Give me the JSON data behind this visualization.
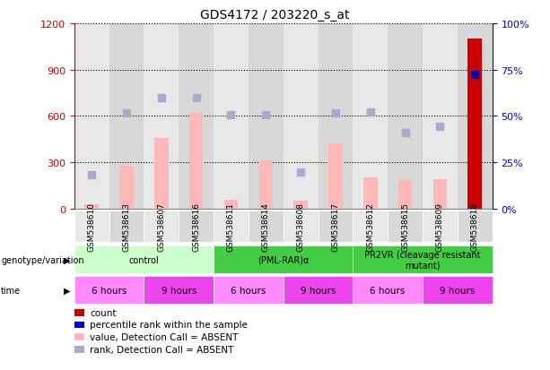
{
  "title": "GDS4172 / 203220_s_at",
  "samples": [
    "GSM538610",
    "GSM538613",
    "GSM538607",
    "GSM538616",
    "GSM538611",
    "GSM538614",
    "GSM538608",
    "GSM538617",
    "GSM538612",
    "GSM538615",
    "GSM538609",
    "GSM538618"
  ],
  "bar_values": [
    30,
    280,
    460,
    620,
    60,
    310,
    50,
    420,
    200,
    185,
    190,
    1100
  ],
  "bar_color_absent": "#FFB8B8",
  "bar_color_present": "#CC0000",
  "rank_values": [
    220,
    620,
    720,
    720,
    610,
    610,
    240,
    620,
    625,
    490,
    530,
    870
  ],
  "rank_color_absent": "#AAAACC",
  "rank_color_present": "#0000BB",
  "absent_flags": [
    true,
    true,
    true,
    true,
    true,
    true,
    true,
    true,
    true,
    true,
    true,
    false
  ],
  "ylim_left": [
    0,
    1200
  ],
  "ylim_right": [
    0,
    100
  ],
  "yticks_left": [
    0,
    300,
    600,
    900,
    1200
  ],
  "yticks_right": [
    0,
    25,
    50,
    75,
    100
  ],
  "ytick_labels_right": [
    "0%",
    "25%",
    "50%",
    "75%",
    "100%"
  ],
  "left_axis_color": "#CC0000",
  "right_axis_color": "#0000CC",
  "group_configs": [
    {
      "label": "control",
      "start": 0,
      "end": 4,
      "color": "#CCFFCC"
    },
    {
      "label": "(PML-RAR)α",
      "start": 4,
      "end": 8,
      "color": "#44CC44"
    },
    {
      "label": "PR2VR (cleavage resistant\nmutant)",
      "start": 8,
      "end": 12,
      "color": "#44CC44"
    }
  ],
  "time_configs": [
    {
      "label": "6 hours",
      "start": 0,
      "end": 2,
      "color": "#FF88FF"
    },
    {
      "label": "9 hours",
      "start": 2,
      "end": 4,
      "color": "#EE44EE"
    },
    {
      "label": "6 hours",
      "start": 4,
      "end": 6,
      "color": "#FF88FF"
    },
    {
      "label": "9 hours",
      "start": 6,
      "end": 8,
      "color": "#EE44EE"
    },
    {
      "label": "6 hours",
      "start": 8,
      "end": 10,
      "color": "#FF88FF"
    },
    {
      "label": "9 hours",
      "start": 10,
      "end": 12,
      "color": "#EE44EE"
    }
  ],
  "legend_items": [
    {
      "label": "count",
      "color": "#CC0000"
    },
    {
      "label": "percentile rank within the sample",
      "color": "#0000BB"
    },
    {
      "label": "value, Detection Call = ABSENT",
      "color": "#FFB8B8"
    },
    {
      "label": "rank, Detection Call = ABSENT",
      "color": "#AAAACC"
    }
  ],
  "bar_width": 0.4,
  "rank_marker_size": 30,
  "bg_colors": [
    "#E8E8E8",
    "#D8D8D8"
  ]
}
